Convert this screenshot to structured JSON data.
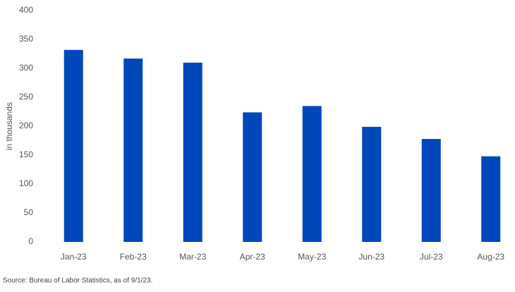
{
  "chart_data": {
    "type": "bar",
    "categories": [
      "Jan-23",
      "Feb-23",
      "Mar-23",
      "Apr-23",
      "May-23",
      "Jun-23",
      "Jul-23",
      "Aug-23"
    ],
    "values": [
      332,
      317,
      310,
      224,
      235,
      199,
      178,
      148
    ],
    "color": "#0047bb",
    "ylabel": "in thousands",
    "ylim": [
      0,
      400
    ],
    "yticks": [
      0,
      50,
      100,
      150,
      200,
      250,
      300,
      350,
      400
    ],
    "grid": false,
    "source": "Source: Bureau of Labor Statistics, as of 9/1/23."
  }
}
